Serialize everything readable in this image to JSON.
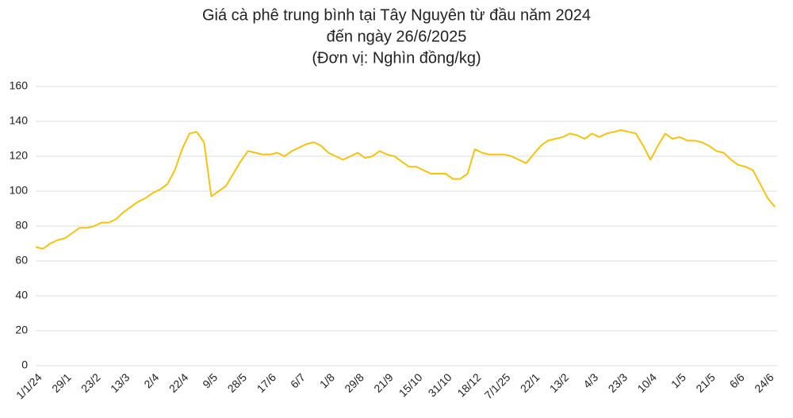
{
  "chart_data": {
    "type": "line",
    "title": [
      "Giá cà phê trung bình tại Tây Nguyên từ đầu năm 2024",
      "đến ngày 26/6/2025",
      "(Đơn vị: Nghìn đồng/kg)"
    ],
    "categories": [
      "1/1/24",
      null,
      null,
      null,
      "29/1",
      null,
      null,
      null,
      "23/2",
      null,
      null,
      null,
      "13/3",
      null,
      null,
      null,
      "2/4",
      null,
      null,
      null,
      "22/4",
      null,
      null,
      null,
      "9/5",
      null,
      null,
      null,
      "28/5",
      null,
      null,
      null,
      "17/6",
      null,
      null,
      null,
      "6/7",
      null,
      null,
      null,
      "1/8",
      null,
      null,
      null,
      "29/8",
      null,
      null,
      null,
      "21/9",
      null,
      null,
      null,
      "15/10",
      null,
      null,
      null,
      "31/10",
      null,
      null,
      null,
      "18/12",
      null,
      null,
      null,
      "7/1/25",
      null,
      null,
      null,
      "22/1",
      null,
      null,
      null,
      "13/2",
      null,
      null,
      null,
      "4/3",
      null,
      null,
      null,
      "23/3",
      null,
      null,
      null,
      "10/4",
      null,
      null,
      null,
      "1/5",
      null,
      null,
      null,
      "21/5",
      null,
      null,
      null,
      "6/6",
      null,
      null,
      null,
      "24/6",
      null
    ],
    "values": [
      68,
      67,
      70,
      72,
      73,
      76,
      79,
      79,
      80,
      82,
      82,
      84,
      88,
      91,
      94,
      96,
      99,
      101,
      104,
      112,
      124,
      133,
      134,
      128,
      97,
      100,
      103,
      110,
      117,
      123,
      122,
      121,
      121,
      122,
      120,
      123,
      125,
      127,
      128,
      126,
      122,
      120,
      118,
      120,
      122,
      119,
      120,
      123,
      121,
      120,
      117,
      114,
      114,
      112,
      110,
      110,
      110,
      107,
      107,
      110,
      124,
      122,
      121,
      121,
      121,
      120,
      118,
      116,
      121,
      126,
      129,
      130,
      131,
      133,
      132,
      130,
      133,
      131,
      133,
      134,
      135,
      134,
      133,
      126,
      118,
      126,
      133,
      130,
      131,
      129,
      129,
      128,
      126,
      123,
      122,
      118,
      115,
      114,
      112,
      104,
      96,
      91
    ],
    "color": "#f2c40f",
    "ylim": [
      0,
      160
    ],
    "yticks": [
      0,
      20,
      40,
      60,
      80,
      100,
      120,
      140,
      160
    ],
    "grid": true
  }
}
